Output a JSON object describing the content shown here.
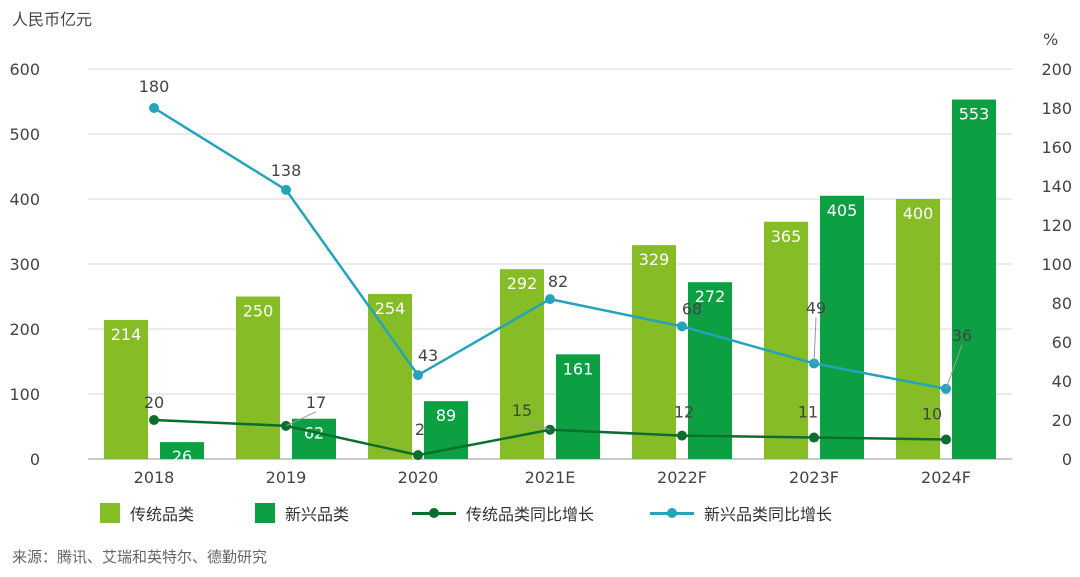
{
  "chart_data": {
    "type": "bar",
    "title": "",
    "left_unit": "人民币亿元",
    "right_unit": "%",
    "categories": [
      "2018",
      "2019",
      "2020",
      "2021E",
      "2022F",
      "2023F",
      "2024F"
    ],
    "left_axis": {
      "ylim": [
        0,
        600
      ],
      "ticks": [
        "0",
        "100",
        "200",
        "300",
        "400",
        "500",
        "600"
      ]
    },
    "right_axis": {
      "ylim": [
        0,
        200
      ],
      "ticks": [
        "0",
        "20",
        "40",
        "60",
        "80",
        "100",
        "120",
        "140",
        "160",
        "180",
        "200"
      ]
    },
    "grid": true,
    "legend_position": "bottom",
    "series": [
      {
        "name": "传统品类",
        "type": "bar",
        "axis": "left",
        "color": "#86BC25",
        "values": [
          214,
          250,
          254,
          292,
          329,
          365,
          400
        ],
        "labels": [
          "214",
          "250",
          "254",
          "292",
          "329",
          "365",
          "400"
        ]
      },
      {
        "name": "新兴品类",
        "type": "bar",
        "axis": "left",
        "color": "#0DA043",
        "values": [
          26,
          62,
          89,
          161,
          272,
          405,
          553
        ],
        "labels": [
          "26",
          "62",
          "89",
          "161",
          "272",
          "405",
          "553"
        ]
      },
      {
        "name": "传统品类同比增长",
        "type": "line",
        "axis": "right",
        "color": "#0B6E2E",
        "values": [
          20,
          17,
          2,
          15,
          12,
          11,
          10
        ],
        "labels": [
          "20",
          "17",
          "2",
          "15",
          "12",
          "11",
          "10"
        ]
      },
      {
        "name": "新兴品类同比增长",
        "type": "line",
        "axis": "right",
        "color": "#23A4BA",
        "values": [
          180,
          138,
          43,
          82,
          68,
          49,
          36
        ],
        "labels": [
          "180",
          "138",
          "43",
          "82",
          "68",
          "49",
          "36"
        ]
      }
    ],
    "source": "来源：腾讯、艾瑞和英特尔、德勤研究"
  }
}
